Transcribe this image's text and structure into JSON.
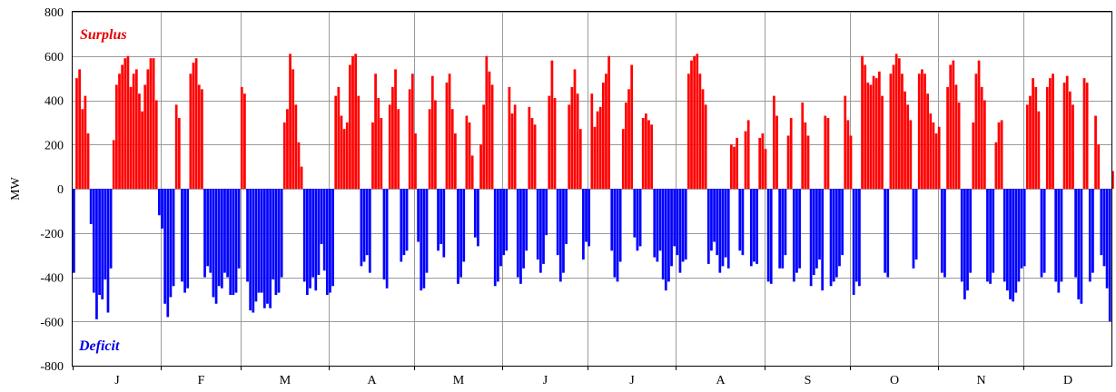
{
  "chart_data": {
    "type": "bar",
    "ylabel": "MW",
    "xlabel": "",
    "ylim": [
      -800,
      800
    ],
    "y_ticks": [
      800,
      600,
      400,
      200,
      0,
      -200,
      -400,
      -600,
      -800
    ],
    "x_unit": "hour of year",
    "x_range": [
      0,
      8760
    ],
    "grid": true,
    "months": [
      "J",
      "F",
      "M",
      "A",
      "M",
      "J",
      "J",
      "A",
      "S",
      "O",
      "N",
      "D"
    ],
    "days_in_month": [
      31,
      28,
      31,
      30,
      31,
      30,
      31,
      31,
      30,
      31,
      30,
      31
    ],
    "annotations": {
      "surplus": {
        "text": "Surplus",
        "color": "#e80000"
      },
      "deficit": {
        "text": "Deficit",
        "color": "#0000e8"
      }
    },
    "colors": {
      "positive": "#ff0000",
      "negative": "#0000ff"
    },
    "series": [
      {
        "sampling_hours": 24,
        "values": [
          -380,
          500,
          540,
          360,
          420,
          250,
          -160,
          -470,
          -590,
          -480,
          -500,
          -410,
          -560,
          -360,
          220,
          470,
          520,
          560,
          590,
          600,
          460,
          520,
          540,
          430,
          350,
          470,
          540,
          590,
          590,
          400,
          -120,
          -180,
          -520,
          -580,
          -490,
          -440,
          380,
          320,
          -420,
          -470,
          -450,
          520,
          570,
          590,
          470,
          450,
          -400,
          -350,
          -380,
          -490,
          -520,
          -440,
          -450,
          -380,
          -400,
          -480,
          -480,
          -470,
          -360,
          460,
          430,
          -420,
          -550,
          -560,
          -510,
          -470,
          -470,
          -540,
          -520,
          -540,
          -410,
          -480,
          -470,
          -400,
          300,
          360,
          610,
          540,
          380,
          210,
          100,
          -420,
          -480,
          -450,
          -400,
          -460,
          -390,
          -250,
          -370,
          -480,
          -470,
          -440,
          420,
          460,
          330,
          270,
          300,
          560,
          600,
          610,
          420,
          -350,
          -330,
          -300,
          -380,
          300,
          520,
          410,
          320,
          -410,
          -450,
          380,
          460,
          540,
          360,
          -330,
          -300,
          -280,
          450,
          520,
          250,
          -240,
          -460,
          -450,
          -380,
          360,
          510,
          400,
          -280,
          -250,
          -310,
          480,
          520,
          360,
          250,
          -430,
          -400,
          -330,
          330,
          300,
          150,
          -220,
          -260,
          200,
          380,
          600,
          530,
          470,
          -440,
          -420,
          -350,
          -300,
          -280,
          460,
          340,
          380,
          -400,
          -430,
          -360,
          -280,
          370,
          320,
          290,
          -320,
          -380,
          -340,
          -210,
          420,
          580,
          410,
          -300,
          -420,
          -380,
          -250,
          380,
          460,
          540,
          430,
          270,
          -320,
          -240,
          -260,
          430,
          280,
          350,
          370,
          480,
          520,
          600,
          -280,
          -400,
          -420,
          -330,
          270,
          390,
          450,
          560,
          -220,
          -280,
          -260,
          320,
          340,
          310,
          290,
          -310,
          -330,
          -280,
          -410,
          -460,
          -420,
          -350,
          -260,
          -300,
          -380,
          -330,
          -320,
          520,
          580,
          600,
          610,
          520,
          450,
          380,
          -340,
          -280,
          -240,
          -300,
          -380,
          -350,
          -310,
          -360,
          200,
          190,
          230,
          -280,
          -300,
          260,
          310,
          -350,
          -330,
          -340,
          230,
          250,
          180,
          -420,
          -430,
          420,
          330,
          -360,
          -360,
          -300,
          240,
          320,
          -420,
          -380,
          -360,
          390,
          300,
          240,
          -440,
          -390,
          -360,
          -320,
          -460,
          330,
          320,
          -440,
          -420,
          -400,
          -350,
          -300,
          420,
          310,
          240,
          -480,
          -420,
          -440,
          600,
          560,
          480,
          470,
          510,
          500,
          530,
          420,
          -380,
          -400,
          520,
          560,
          610,
          590,
          520,
          440,
          380,
          310,
          -360,
          -320,
          520,
          540,
          520,
          430,
          340,
          300,
          250,
          280,
          -380,
          -400,
          460,
          560,
          580,
          470,
          390,
          -420,
          -500,
          -460,
          -380,
          300,
          520,
          580,
          460,
          400,
          -420,
          -430,
          -380,
          210,
          300,
          310,
          -420,
          -460,
          -500,
          -510,
          -470,
          -420,
          -360,
          -350,
          380,
          420,
          500,
          460,
          350,
          -400,
          -380,
          460,
          500,
          520,
          -420,
          -470,
          -420,
          480,
          510,
          440,
          380,
          -400,
          -500,
          -520,
          500,
          480,
          -420,
          -380,
          330,
          200,
          -300,
          -350,
          -450,
          -600,
          80
        ]
      }
    ]
  }
}
